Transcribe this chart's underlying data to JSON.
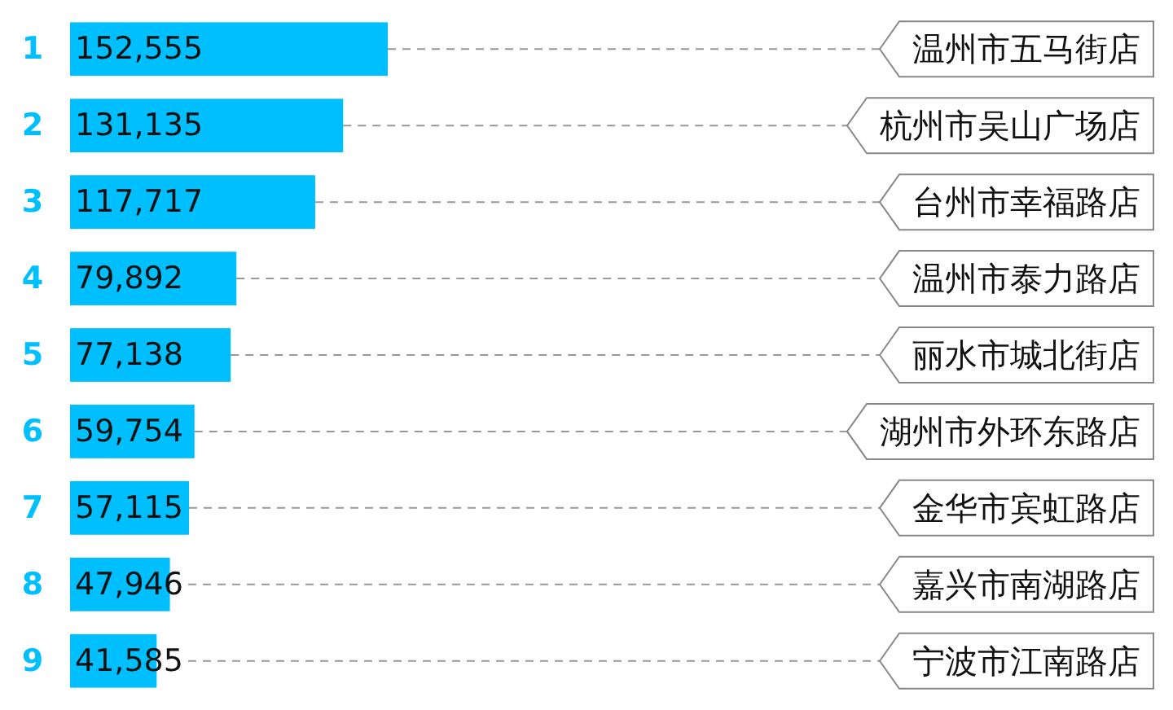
{
  "chart_data": {
    "type": "bar",
    "orientation": "horizontal",
    "color": "#00bfff",
    "categories": [
      "温州市五马街店",
      "杭州市吴山广场店",
      "台州市幸福路店",
      "温州市泰力路店",
      "丽水市城北街店",
      "湖州市外环东路店",
      "金华市宾虹路店",
      "嘉兴市南湖路店",
      "宁波市江南路店"
    ],
    "values": [
      152555,
      131135,
      117717,
      79892,
      77138,
      59754,
      57115,
      47946,
      41585
    ],
    "value_labels": [
      "152,555",
      "131,135",
      "117,717",
      "79,892",
      "77,138",
      "59,754",
      "57,115",
      "47,946",
      "41,585"
    ],
    "annotations": [
      "1",
      "2",
      "3",
      "4",
      "5",
      "6",
      "7",
      "8",
      "9"
    ]
  }
}
